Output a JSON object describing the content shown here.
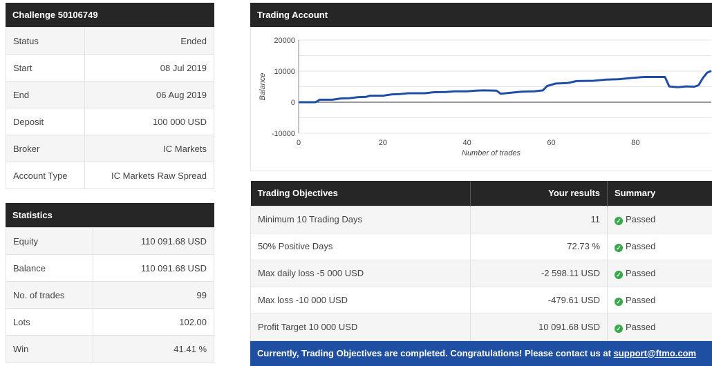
{
  "challenge": {
    "title": "Challenge 50106749",
    "rows": [
      {
        "label": "Status",
        "value": "Ended"
      },
      {
        "label": "Start",
        "value": "08 Jul 2019"
      },
      {
        "label": "End",
        "value": "06 Aug 2019"
      },
      {
        "label": "Deposit",
        "value": "100 000 USD"
      },
      {
        "label": "Broker",
        "value": "IC Markets"
      },
      {
        "label": "Account Type",
        "value": "IC Markets Raw Spread"
      }
    ]
  },
  "statistics": {
    "title": "Statistics",
    "rows": [
      {
        "label": "Equity",
        "value": "110 091.68 USD"
      },
      {
        "label": "Balance",
        "value": "110 091.68 USD"
      },
      {
        "label": "No. of trades",
        "value": "99"
      },
      {
        "label": "Lots",
        "value": "102.00"
      },
      {
        "label": "Win",
        "value": "41.41 %"
      }
    ]
  },
  "trading_account": {
    "title": "Trading Account"
  },
  "chart_data": {
    "type": "line",
    "xlabel": "Number of trades",
    "ylabel": "Balance",
    "xlim": [
      0,
      98
    ],
    "ylim": [
      -10000,
      20000
    ],
    "x_ticks": [
      0,
      20,
      40,
      60,
      80
    ],
    "y_ticks": [
      20000,
      10000,
      0,
      -10000
    ],
    "x_tick_labels": [
      "0",
      "20",
      "40",
      "60",
      "80"
    ],
    "y_tick_labels": [
      "20000",
      "10000",
      "0",
      "-10000"
    ],
    "grid": true,
    "line_color": "#1f4ea6",
    "series": [
      {
        "points": [
          [
            0,
            0
          ],
          [
            4,
            0
          ],
          [
            5,
            800
          ],
          [
            8,
            800
          ],
          [
            10,
            1200
          ],
          [
            12,
            1300
          ],
          [
            14,
            1600
          ],
          [
            16,
            1700
          ],
          [
            17,
            2100
          ],
          [
            20,
            2100
          ],
          [
            22,
            2500
          ],
          [
            24,
            2600
          ],
          [
            26,
            2900
          ],
          [
            30,
            2900
          ],
          [
            32,
            3200
          ],
          [
            35,
            3300
          ],
          [
            37,
            3500
          ],
          [
            40,
            3500
          ],
          [
            42,
            3700
          ],
          [
            44,
            3800
          ],
          [
            47,
            3700
          ],
          [
            48,
            2700
          ],
          [
            50,
            3000
          ],
          [
            53,
            3400
          ],
          [
            56,
            3500
          ],
          [
            58,
            3800
          ],
          [
            59,
            5200
          ],
          [
            61,
            6000
          ],
          [
            64,
            6200
          ],
          [
            66,
            6800
          ],
          [
            70,
            6900
          ],
          [
            73,
            7300
          ],
          [
            76,
            7400
          ],
          [
            79,
            7800
          ],
          [
            82,
            8100
          ],
          [
            85,
            8100
          ],
          [
            87,
            8100
          ],
          [
            88,
            5100
          ],
          [
            90,
            4800
          ],
          [
            92,
            5100
          ],
          [
            94,
            5000
          ],
          [
            95,
            5500
          ],
          [
            96,
            7800
          ],
          [
            97,
            9500
          ],
          [
            98,
            10091
          ]
        ]
      }
    ]
  },
  "objectives": {
    "headers": {
      "objective": "Trading Objectives",
      "results": "Your results",
      "summary": "Summary"
    },
    "rows": [
      {
        "objective": "Minimum 10 Trading Days",
        "result": "11",
        "summary": "Passed"
      },
      {
        "objective": "50% Positive Days",
        "result": "72.73 %",
        "summary": "Passed"
      },
      {
        "objective": "Max daily loss -5 000 USD",
        "result": "-2 598.11 USD",
        "summary": "Passed"
      },
      {
        "objective": "Max loss -10 000 USD",
        "result": "-479.61 USD",
        "summary": "Passed"
      },
      {
        "objective": "Profit Target 10 000 USD",
        "result": "10 091.68 USD",
        "summary": "Passed"
      }
    ],
    "banner_text": "Currently, Trading Objectives are completed. Congratulations! Please contact us at ",
    "banner_link": "support@ftmo.com"
  }
}
